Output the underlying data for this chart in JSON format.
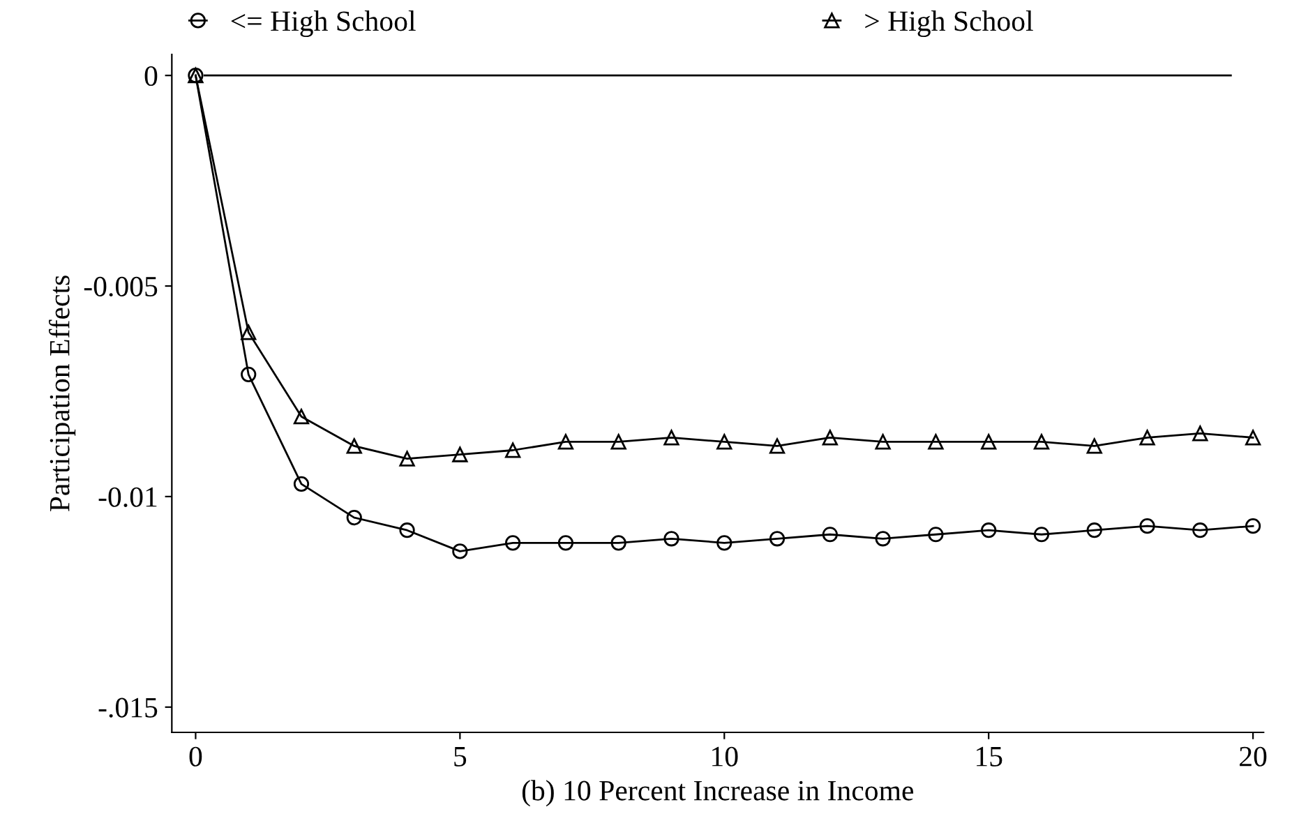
{
  "chart_data": {
    "type": "line",
    "xlabel": "(b) 10 Percent Increase in Income",
    "ylabel": "Participation Effects",
    "x": [
      0,
      1,
      2,
      3,
      4,
      5,
      6,
      7,
      8,
      9,
      10,
      11,
      12,
      13,
      14,
      15,
      16,
      17,
      18,
      19,
      20
    ],
    "series": [
      {
        "name": "<= High School",
        "color": "#000000",
        "marker": "circle",
        "values": [
          0,
          -0.0071,
          -0.0097,
          -0.0105,
          -0.0108,
          -0.0113,
          -0.0111,
          -0.0111,
          -0.0111,
          -0.011,
          -0.0111,
          -0.011,
          -0.0109,
          -0.011,
          -0.0109,
          -0.0108,
          -0.0109,
          -0.0108,
          -0.0107,
          -0.0108,
          -0.0107
        ]
      },
      {
        "name": "> High School",
        "color": "#000000",
        "marker": "triangle",
        "values": [
          0,
          -0.0061,
          -0.0081,
          -0.0088,
          -0.0091,
          -0.009,
          -0.0089,
          -0.0087,
          -0.0087,
          -0.0086,
          -0.0087,
          -0.0088,
          -0.0086,
          -0.0087,
          -0.0087,
          -0.0087,
          -0.0087,
          -0.0088,
          -0.0086,
          -0.0085,
          -0.0086
        ]
      }
    ],
    "xlim": [
      -0.45,
      20.2
    ],
    "xticks": [
      0,
      5,
      10,
      15,
      20
    ],
    "ylim": [
      -0.0156,
      0.0005
    ],
    "yticks": [
      0,
      -0.005,
      -0.01,
      {
        "value": -0.015,
        "label": "-.015"
      }
    ],
    "ref_lines": [
      {
        "axis": "y",
        "value": 0,
        "color": "#000000"
      }
    ],
    "legend": "top",
    "grid": false,
    "line_style": "solid"
  }
}
